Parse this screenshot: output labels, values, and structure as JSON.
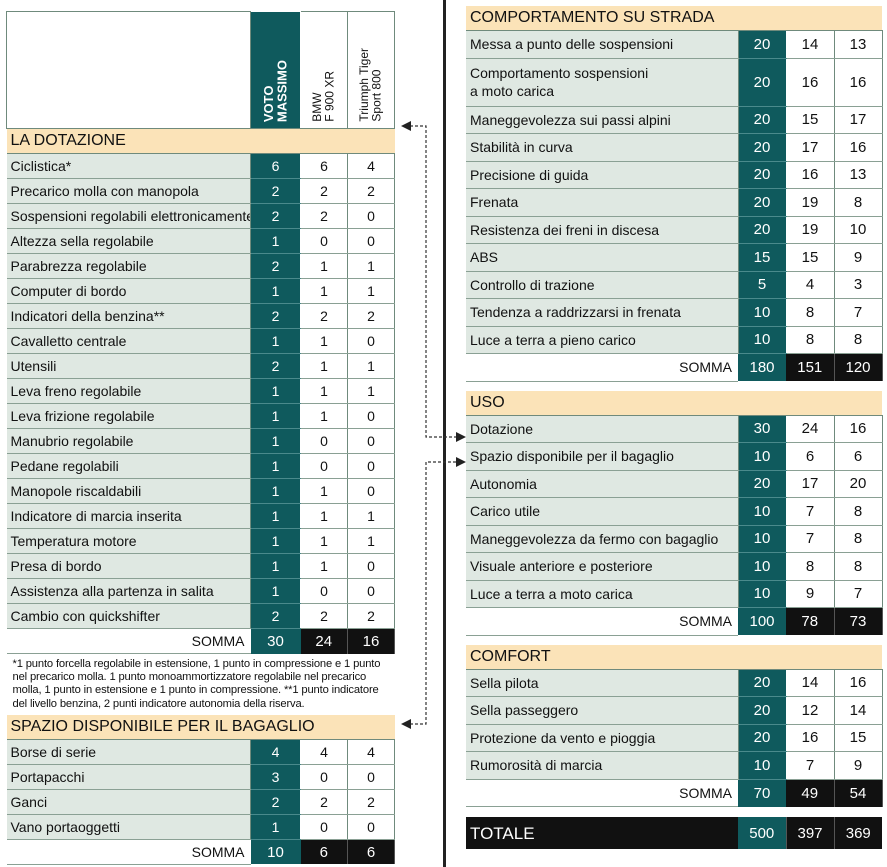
{
  "header": {
    "col_max": [
      "VOTO",
      "MASSIMO"
    ],
    "col_bmw": [
      "BMW",
      "F 900 XR"
    ],
    "col_tri": [
      "Triumph Tiger",
      "Sport 800"
    ]
  },
  "somma_label": "SOMMA",
  "dotazione": {
    "title": "LA DOTAZIONE",
    "rows": [
      {
        "label": "Ciclistica*",
        "max": "6",
        "bmw": "6",
        "tri": "4"
      },
      {
        "label": "Precarico molla con manopola",
        "max": "2",
        "bmw": "2",
        "tri": "2"
      },
      {
        "label": "Sospensioni regolabili elettronicamente",
        "max": "2",
        "bmw": "2",
        "tri": "0"
      },
      {
        "label": "Altezza sella regolabile",
        "max": "1",
        "bmw": "0",
        "tri": "0"
      },
      {
        "label": "Parabrezza regolabile",
        "max": "2",
        "bmw": "1",
        "tri": "1"
      },
      {
        "label": "Computer di bordo",
        "max": "1",
        "bmw": "1",
        "tri": "1"
      },
      {
        "label": "Indicatori della benzina**",
        "max": "2",
        "bmw": "2",
        "tri": "2"
      },
      {
        "label": "Cavalletto centrale",
        "max": "1",
        "bmw": "1",
        "tri": "0"
      },
      {
        "label": "Utensili",
        "max": "2",
        "bmw": "1",
        "tri": "1"
      },
      {
        "label": "Leva freno regolabile",
        "max": "1",
        "bmw": "1",
        "tri": "1"
      },
      {
        "label": "Leva frizione regolabile",
        "max": "1",
        "bmw": "1",
        "tri": "0"
      },
      {
        "label": "Manubrio regolabile",
        "max": "1",
        "bmw": "0",
        "tri": "0"
      },
      {
        "label": "Pedane regolabili",
        "max": "1",
        "bmw": "0",
        "tri": "0"
      },
      {
        "label": "Manopole riscaldabili",
        "max": "1",
        "bmw": "1",
        "tri": "0"
      },
      {
        "label": "Indicatore di marcia inserita",
        "max": "1",
        "bmw": "1",
        "tri": "1"
      },
      {
        "label": "Temperatura motore",
        "max": "1",
        "bmw": "1",
        "tri": "1"
      },
      {
        "label": "Presa di bordo",
        "max": "1",
        "bmw": "1",
        "tri": "0"
      },
      {
        "label": "Assistenza alla partenza in salita",
        "max": "1",
        "bmw": "0",
        "tri": "0"
      },
      {
        "label": "Cambio con quickshifter",
        "max": "2",
        "bmw": "2",
        "tri": "2"
      }
    ],
    "somma": {
      "max": "30",
      "bmw": "24",
      "tri": "16"
    },
    "note": "*1 punto forcella regolabile in estensione, 1 punto in compressione e 1 punto nel precarico molla. 1 punto monoammortizzatore regolabile nel precarico molla, 1 punto in estensione e 1 punto in compressione. **1 punto indicatore del livello benzina, 2 punti indicatore autonomia della riserva."
  },
  "bagaglio": {
    "title": "SPAZIO DISPONIBILE PER IL BAGAGLIO",
    "rows": [
      {
        "label": "Borse di serie",
        "max": "4",
        "bmw": "4",
        "tri": "4"
      },
      {
        "label": "Portapacchi",
        "max": "3",
        "bmw": "0",
        "tri": "0"
      },
      {
        "label": "Ganci",
        "max": "2",
        "bmw": "2",
        "tri": "2"
      },
      {
        "label": "Vano portaoggetti",
        "max": "1",
        "bmw": "0",
        "tri": "0"
      }
    ],
    "somma": {
      "max": "10",
      "bmw": "6",
      "tri": "6"
    }
  },
  "strada": {
    "title": "COMPORTAMENTO SU STRADA",
    "rows": [
      {
        "label": "Messa a punto delle sospensioni",
        "max": "20",
        "bmw": "14",
        "tri": "13"
      },
      {
        "label": "Comportamento sospensioni",
        "label2": "a moto carica",
        "max": "20",
        "bmw": "16",
        "tri": "16"
      },
      {
        "label": "Maneggevolezza sui passi alpini",
        "max": "20",
        "bmw": "15",
        "tri": "17"
      },
      {
        "label": "Stabilità in curva",
        "max": "20",
        "bmw": "17",
        "tri": "16"
      },
      {
        "label": "Precisione di guida",
        "max": "20",
        "bmw": "16",
        "tri": "13"
      },
      {
        "label": "Frenata",
        "max": "20",
        "bmw": "19",
        "tri": "8"
      },
      {
        "label": "Resistenza dei freni in discesa",
        "max": "20",
        "bmw": "19",
        "tri": "10"
      },
      {
        "label": "ABS",
        "max": "15",
        "bmw": "15",
        "tri": "9"
      },
      {
        "label": "Controllo di trazione",
        "max": "5",
        "bmw": "4",
        "tri": "3"
      },
      {
        "label": "Tendenza a raddrizzarsi in frenata",
        "max": "10",
        "bmw": "8",
        "tri": "7"
      },
      {
        "label": "Luce a terra a pieno carico",
        "max": "10",
        "bmw": "8",
        "tri": "8"
      }
    ],
    "somma": {
      "max": "180",
      "bmw": "151",
      "tri": "120"
    }
  },
  "uso": {
    "title": "USO",
    "rows": [
      {
        "label": "Dotazione",
        "max": "30",
        "bmw": "24",
        "tri": "16"
      },
      {
        "label": "Spazio disponibile per il bagaglio",
        "max": "10",
        "bmw": "6",
        "tri": "6"
      },
      {
        "label": "Autonomia",
        "max": "20",
        "bmw": "17",
        "tri": "20"
      },
      {
        "label": "Carico utile",
        "max": "10",
        "bmw": "7",
        "tri": "8"
      },
      {
        "label": "Maneggevolezza da fermo con bagaglio",
        "max": "10",
        "bmw": "7",
        "tri": "8"
      },
      {
        "label": "Visuale anteriore e posteriore",
        "max": "10",
        "bmw": "8",
        "tri": "8"
      },
      {
        "label": "Luce a terra a moto carica",
        "max": "10",
        "bmw": "9",
        "tri": "7"
      }
    ],
    "somma": {
      "max": "100",
      "bmw": "78",
      "tri": "73"
    }
  },
  "comfort": {
    "title": "COMFORT",
    "rows": [
      {
        "label": "Sella pilota",
        "max": "20",
        "bmw": "14",
        "tri": "16"
      },
      {
        "label": "Sella passeggero",
        "max": "20",
        "bmw": "12",
        "tri": "14"
      },
      {
        "label": "Protezione da vento e pioggia",
        "max": "20",
        "bmw": "16",
        "tri": "15"
      },
      {
        "label": "Rumorosità di marcia",
        "max": "10",
        "bmw": "7",
        "tri": "9"
      }
    ],
    "somma": {
      "max": "70",
      "bmw": "49",
      "tri": "54"
    }
  },
  "totale": {
    "label": "TOTALE",
    "max": "500",
    "bmw": "397",
    "tri": "369"
  },
  "colors": {
    "max_bg": "#0f5a5d",
    "section_bg": "#fbe3b8",
    "label_bg": "#dfe8e2",
    "somma_bg": "#111111"
  }
}
